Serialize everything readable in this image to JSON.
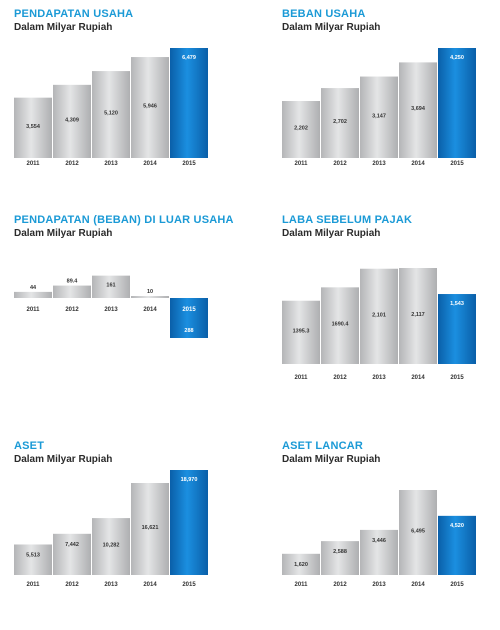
{
  "chart_data": [
    {
      "type": "bar",
      "title": "PENDAPATAN USAHA",
      "subtitle": "Dalam Milyar Rupiah",
      "categories": [
        "2011",
        "2012",
        "2013",
        "2014",
        "2015"
      ],
      "values": [
        3554,
        4309,
        5120,
        5946,
        6479
      ],
      "value_labels": [
        "3,554",
        "4,309",
        "5,120",
        "5,946",
        "6,479"
      ],
      "highlight_index": 4,
      "colors": {
        "bar": "#c9cacc",
        "highlight": "#0d6fbd"
      }
    },
    {
      "type": "bar",
      "title": "BEBAN USAHA",
      "subtitle": "Dalam Milyar Rupiah",
      "categories": [
        "2011",
        "2012",
        "2013",
        "2014",
        "2015"
      ],
      "values": [
        2202,
        2702,
        3147,
        3694,
        4250
      ],
      "value_labels": [
        "2,202",
        "2,702",
        "3,147",
        "3,694",
        "4,250"
      ],
      "highlight_index": 4,
      "colors": {
        "bar": "#c9cacc",
        "highlight": "#0d6fbd"
      }
    },
    {
      "type": "bar",
      "title": "PENDAPATAN (BEBAN) DI LUAR USAHA",
      "subtitle": "Dalam Milyar Rupiah",
      "categories": [
        "2011",
        "2012",
        "2013",
        "2014",
        "2015"
      ],
      "values": [
        44,
        89.4,
        161,
        10,
        -288
      ],
      "value_labels": [
        "44",
        "89.4",
        "161",
        "10",
        "288"
      ],
      "highlight_index": 4,
      "colors": {
        "bar": "#c9cacc",
        "highlight": "#0d6fbd"
      }
    },
    {
      "type": "bar",
      "title": "LABA SEBELUM PAJAK",
      "subtitle": "Dalam Milyar Rupiah",
      "categories": [
        "2011",
        "2012",
        "2013",
        "2014",
        "2015"
      ],
      "values": [
        1395.3,
        1690.4,
        2101,
        2117,
        1543
      ],
      "value_labels": [
        "1395.3",
        "1690.4",
        "2,101",
        "2,117",
        "1,543"
      ],
      "highlight_index": 4,
      "colors": {
        "bar": "#c9cacc",
        "highlight": "#0d6fbd"
      }
    },
    {
      "type": "bar",
      "title": "ASET",
      "subtitle": "Dalam Milyar Rupiah",
      "categories": [
        "2011",
        "2012",
        "2013",
        "2014",
        "2015"
      ],
      "values": [
        5513,
        7442,
        10282,
        16621,
        18970
      ],
      "value_labels": [
        "5,513",
        "7,442",
        "10,282",
        "16,621",
        "18,970"
      ],
      "highlight_index": 4,
      "colors": {
        "bar": "#c9cacc",
        "highlight": "#0d6fbd"
      }
    },
    {
      "type": "bar",
      "title": "ASET LANCAR",
      "subtitle": "Dalam Milyar Rupiah",
      "categories": [
        "2011",
        "2012",
        "2013",
        "2014",
        "2015"
      ],
      "values": [
        1620,
        2588,
        3446,
        6495,
        4520
      ],
      "value_labels": [
        "1,620",
        "2,588",
        "3,446",
        "6,495",
        "4,520"
      ],
      "highlight_index": 4,
      "colors": {
        "bar": "#c9cacc",
        "highlight": "#0d6fbd"
      }
    }
  ]
}
